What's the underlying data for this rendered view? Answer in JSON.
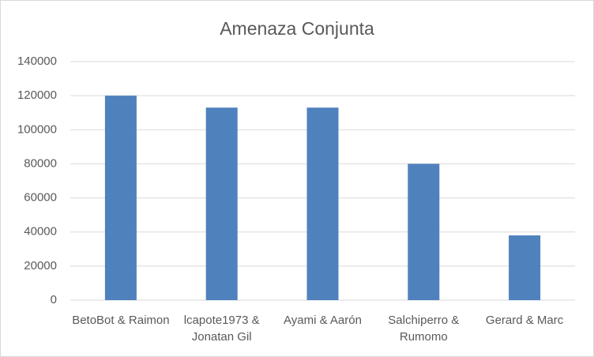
{
  "chart_data": {
    "type": "bar",
    "title": "Amenaza Conjunta",
    "categories": [
      "BetoBot & Raimon",
      "lcapote1973 & Jonatan Gil",
      "Ayami & Aarón",
      "Salchiperro & Rumomo",
      "Gerard & Marc"
    ],
    "values": [
      120000,
      113000,
      113000,
      80000,
      38000
    ],
    "color": "#4f81bd",
    "ylim": [
      0,
      140000
    ],
    "yticks": [
      0,
      20000,
      40000,
      60000,
      80000,
      100000,
      120000,
      140000
    ],
    "grid": true
  }
}
